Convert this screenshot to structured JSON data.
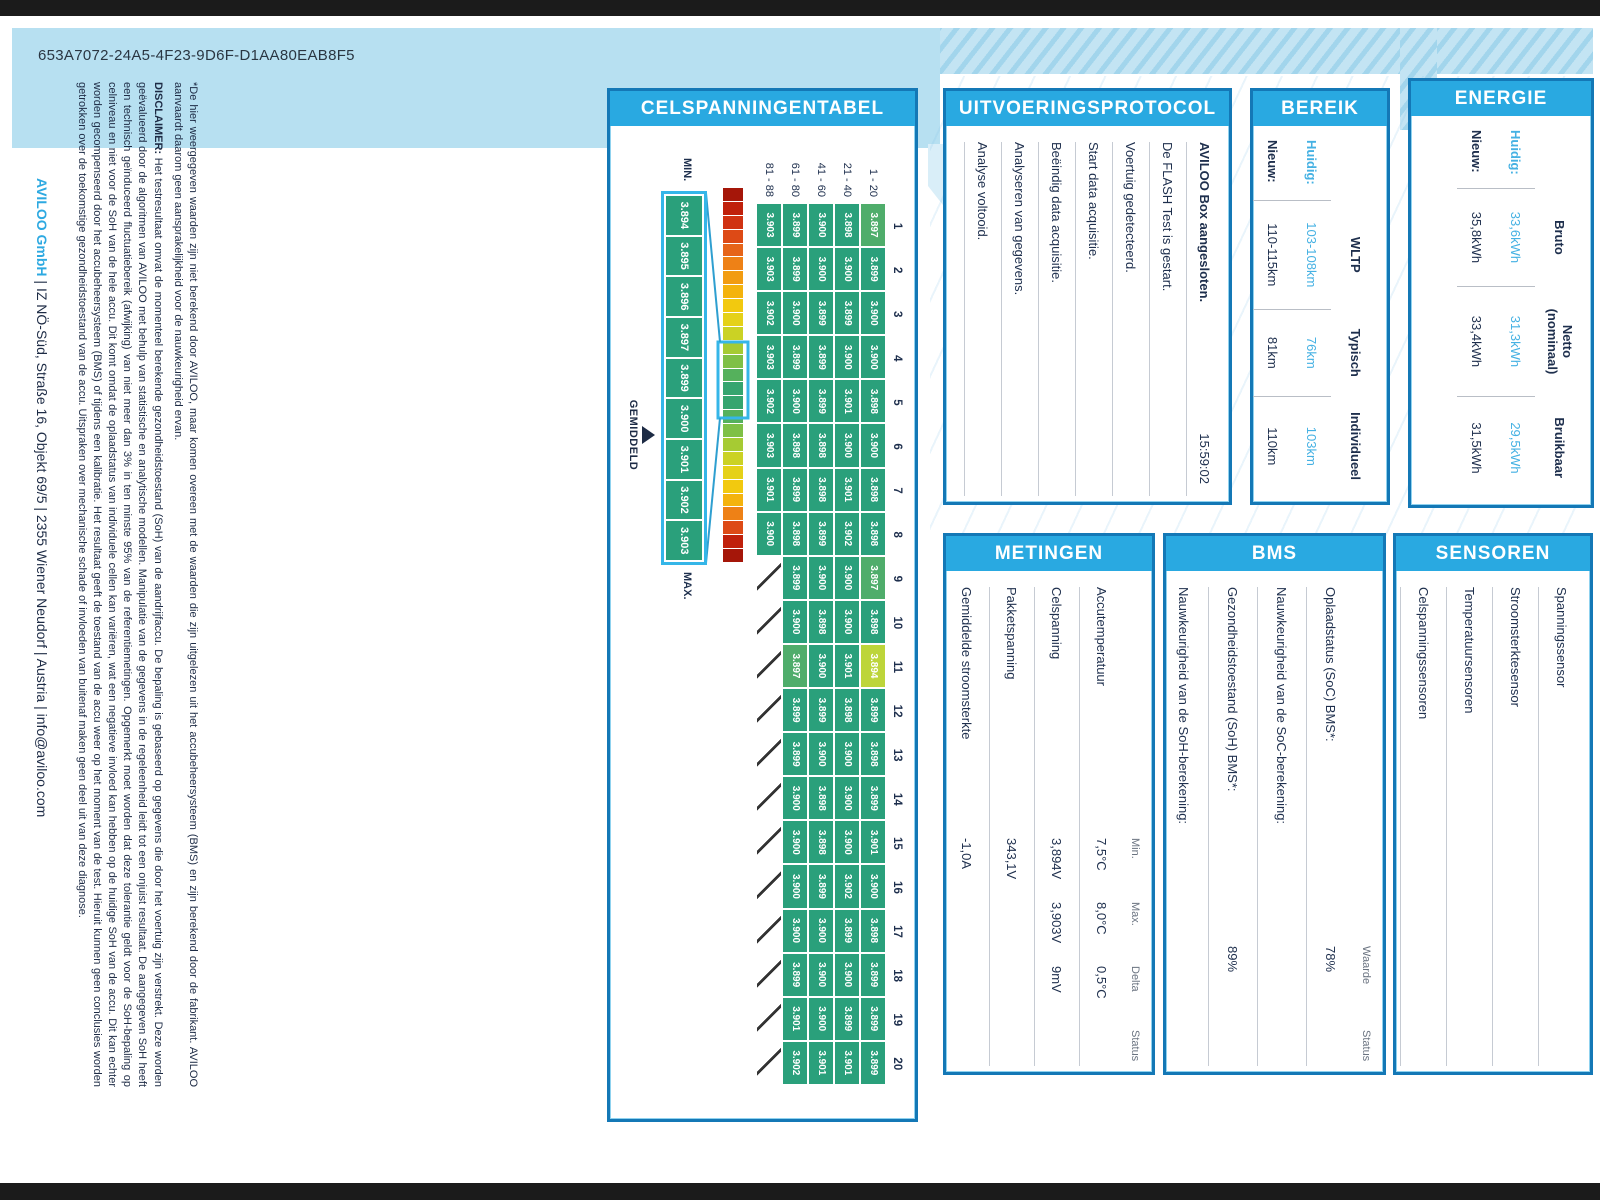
{
  "page": {
    "uuid": "653A7072-24A5-4F23-9D6F-D1AA80EAB8F5",
    "check_glyph": "✓"
  },
  "colors": {
    "accent_blue": "#29a9e1",
    "border_blue": "#1478b6",
    "cell_green": "#2aa07b",
    "cell_min_yellow": "#bdd53a",
    "value_blue": "#45b1e3",
    "text_dark": "#1d2b45",
    "scale_cyan": "#35b6e8"
  },
  "cell_table": {
    "title": "CELSPANNINGENTABEL",
    "col_indices": [
      "1",
      "2",
      "3",
      "4",
      "5",
      "6",
      "7",
      "8",
      "9",
      "10",
      "11",
      "12",
      "13",
      "14",
      "15",
      "16",
      "17",
      "18",
      "19",
      "20"
    ],
    "rows": [
      {
        "label": "1 - 20",
        "values": [
          "3.897",
          "3.899",
          "3.900",
          "3.900",
          "3.898",
          "3.900",
          "3.898",
          "3.898",
          "3.897",
          "3.898",
          "3.894",
          "3.899",
          "3.898",
          "3.899",
          "3.901",
          "3.900",
          "3.898",
          "3.899",
          "3.899",
          "3.899"
        ]
      },
      {
        "label": "21 - 40",
        "values": [
          "3.898",
          "3.900",
          "3.899",
          "3.900",
          "3.901",
          "3.900",
          "3.901",
          "3.902",
          "3.900",
          "3.900",
          "3.901",
          "3.898",
          "3.900",
          "3.900",
          "3.900",
          "3.902",
          "3.899",
          "3.900",
          "3.899",
          "3.901"
        ]
      },
      {
        "label": "41 - 60",
        "values": [
          "3.900",
          "3.900",
          "3.899",
          "3.899",
          "3.899",
          "3.898",
          "3.898",
          "3.899",
          "3.900",
          "3.898",
          "3.900",
          "3.899",
          "3.900",
          "3.898",
          "3.898",
          "3.899",
          "3.900",
          "3.900",
          "3.900",
          "3.901"
        ]
      },
      {
        "label": "61 - 80",
        "values": [
          "3.899",
          "3.899",
          "3.900",
          "3.899",
          "3.900",
          "3.898",
          "3.899",
          "3.898",
          "3.899",
          "3.900",
          "3.897",
          "3.899",
          "3.899",
          "3.900",
          "3.900",
          "3.900",
          "3.900",
          "3.899",
          "3.901",
          "3.902"
        ]
      },
      {
        "label": "81 - 88",
        "values": [
          "3.903",
          "3.903",
          "3.902",
          "3.903",
          "3.902",
          "3.903",
          "3.901",
          "3.900",
          null,
          null,
          null,
          null,
          null,
          null,
          null,
          null,
          null,
          null,
          null,
          null
        ]
      }
    ],
    "scale": {
      "min_label": "MIN.",
      "max_label": "MAX.",
      "avg_label": "GEMIDDELD",
      "values": [
        "3.894",
        "3.895",
        "3.896",
        "3.897",
        "3.899",
        "3.900",
        "3.901",
        "3.902",
        "3.903"
      ]
    }
  },
  "protocol": {
    "title": "UITVOERINGSPROTOCOL",
    "items": [
      {
        "label": "AVILOO Box aangesloten.",
        "time": "15:59:02",
        "checked": true,
        "bold": true
      },
      {
        "label": "De FLASH Test is gestart.",
        "time": "",
        "checked": true
      },
      {
        "label": "Voertuig gedetecteerd.",
        "time": "",
        "checked": true
      },
      {
        "label": "Start data acquisitie.",
        "time": "",
        "checked": true
      },
      {
        "label": "Beëindig data acquisitie.",
        "time": "",
        "checked": true
      },
      {
        "label": "Analyseren van gegevens.",
        "time": "",
        "checked": true
      },
      {
        "label": "Analyse voltooid.",
        "time": "",
        "checked": true
      }
    ]
  },
  "bereik": {
    "title": "BEREIK",
    "columns": [
      "WLTP",
      "Typisch",
      "Individueel"
    ],
    "rows": [
      {
        "label": "Huidig:",
        "accent": true,
        "values": [
          "103-108km",
          "76km",
          "103km"
        ]
      },
      {
        "label": "Nieuw:",
        "accent": false,
        "values": [
          "110-115km",
          "81km",
          "110km"
        ]
      }
    ]
  },
  "energie": {
    "title": "ENERGIE",
    "columns": [
      "Bruto",
      "Netto (nominaal)",
      "Bruikbaar"
    ],
    "rows": [
      {
        "label": "Huidig:",
        "accent": true,
        "values": [
          "33,6kWh",
          "31,3kWh",
          "29,5kWh"
        ]
      },
      {
        "label": "Nieuw:",
        "accent": false,
        "values": [
          "35,8kWh",
          "33,4kWh",
          "31,5kWh"
        ]
      }
    ]
  },
  "metingen": {
    "title": "METINGEN",
    "columns": [
      "Min.",
      "Max.",
      "Delta",
      "Status"
    ],
    "rows": [
      {
        "label": "Accutemperatuur",
        "min": "7,5°C",
        "max": "8,0°C",
        "delta": "0,5°C",
        "checked": true
      },
      {
        "label": "Celspanning",
        "min": "3,894V",
        "max": "3,903V",
        "delta": "9mV",
        "checked": true
      },
      {
        "label": "Pakketspanning",
        "min": "343,1V",
        "max": "",
        "delta": "",
        "checked": false
      },
      {
        "label": "Gemiddelde stroomsterkte",
        "min": "-1,0A",
        "max": "",
        "delta": "",
        "checked": false
      }
    ]
  },
  "bms": {
    "title": "BMS",
    "columns": [
      "Waarde",
      "Status"
    ],
    "rows": [
      {
        "label": "Oplaadstatus (SoC) BMS*:",
        "value": "78%",
        "checked": false
      },
      {
        "label": "Nauwkeurigheid van de SoC-berekening:",
        "value": "",
        "checked": true
      },
      {
        "label": "Gezondheidstoestand (SoH) BMS*:",
        "value": "89%",
        "checked": false
      },
      {
        "label": "Nauwkeurigheid van de SoH-berekening:",
        "value": "",
        "checked": true
      }
    ]
  },
  "sensoren": {
    "title": "SENSOREN",
    "rows": [
      {
        "label": "Spanningssensor",
        "checked": true
      },
      {
        "label": "Stroomsterktesensor",
        "checked": true
      },
      {
        "label": "Temperatuursensoren",
        "checked": true
      },
      {
        "label": "Celspanningssensoren",
        "checked": true
      }
    ]
  },
  "disclaimer": {
    "p1": "*De hier weergegeven waarden zijn niet berekend door AVILOO, maar komen overeen met de waarden die zijn uitgelezen uit het accubeheersysteem (BMS) en zijn berekend door de fabrikant. AVILOO aanvaardt daarom geen aansprakelijkheid voor de nauwkeurigheid ervan.",
    "p2_bold": "DISCLAIMER:",
    "p2": " Het testresultaat omvat de momenteel berekende gezondheidstoestand (SoH) van de aandrijfaccu. De bepaling is gebaseerd op gegevens die door het voertuig zijn verstrekt. Deze worden geëvalueerd door de algoritmen van AVILOO met behulp van statistische en analytische modellen. Manipulatie van de gegevens in de regeleenheid leidt tot een onjuist resultaat. De aangegeven SoH heeft een technisch geïnduceerd fluctuatiebereik (afwijking) van niet meer dan 3% in ten minste 95% van de referentiemetingen. Opgemerkt moet worden dat deze tolerantie geldt voor de SoH-bepaling op celniveau en niet voor de SoH van de hele accu. Dit komt omdat de oplaadstatus van individuele cellen kan variëren, wat een negatieve invloed kan hebben op de huidige SoH van de accu. Dit kan echter worden gecompenseerd door het accubeheersysteem (BMS) of tijdens een kalibratie. Het resultaat geeft de toestand van de accu weer op het moment van de test. Hieruit kunnen geen conclusies worden getrokken over de toekomstige gezondheidstoestand van de accu. Uitspraken over mechanische schade of invloeden van buitenaf maken geen deel uit van deze diagnose."
  },
  "footer": {
    "company": "AVILOO GmbH",
    "rest": " | IZ NÖ-Süd, Straße 16, Objekt 69/5 | 2355 Wiener Neudorf | Austria | info@aviloo.com"
  }
}
